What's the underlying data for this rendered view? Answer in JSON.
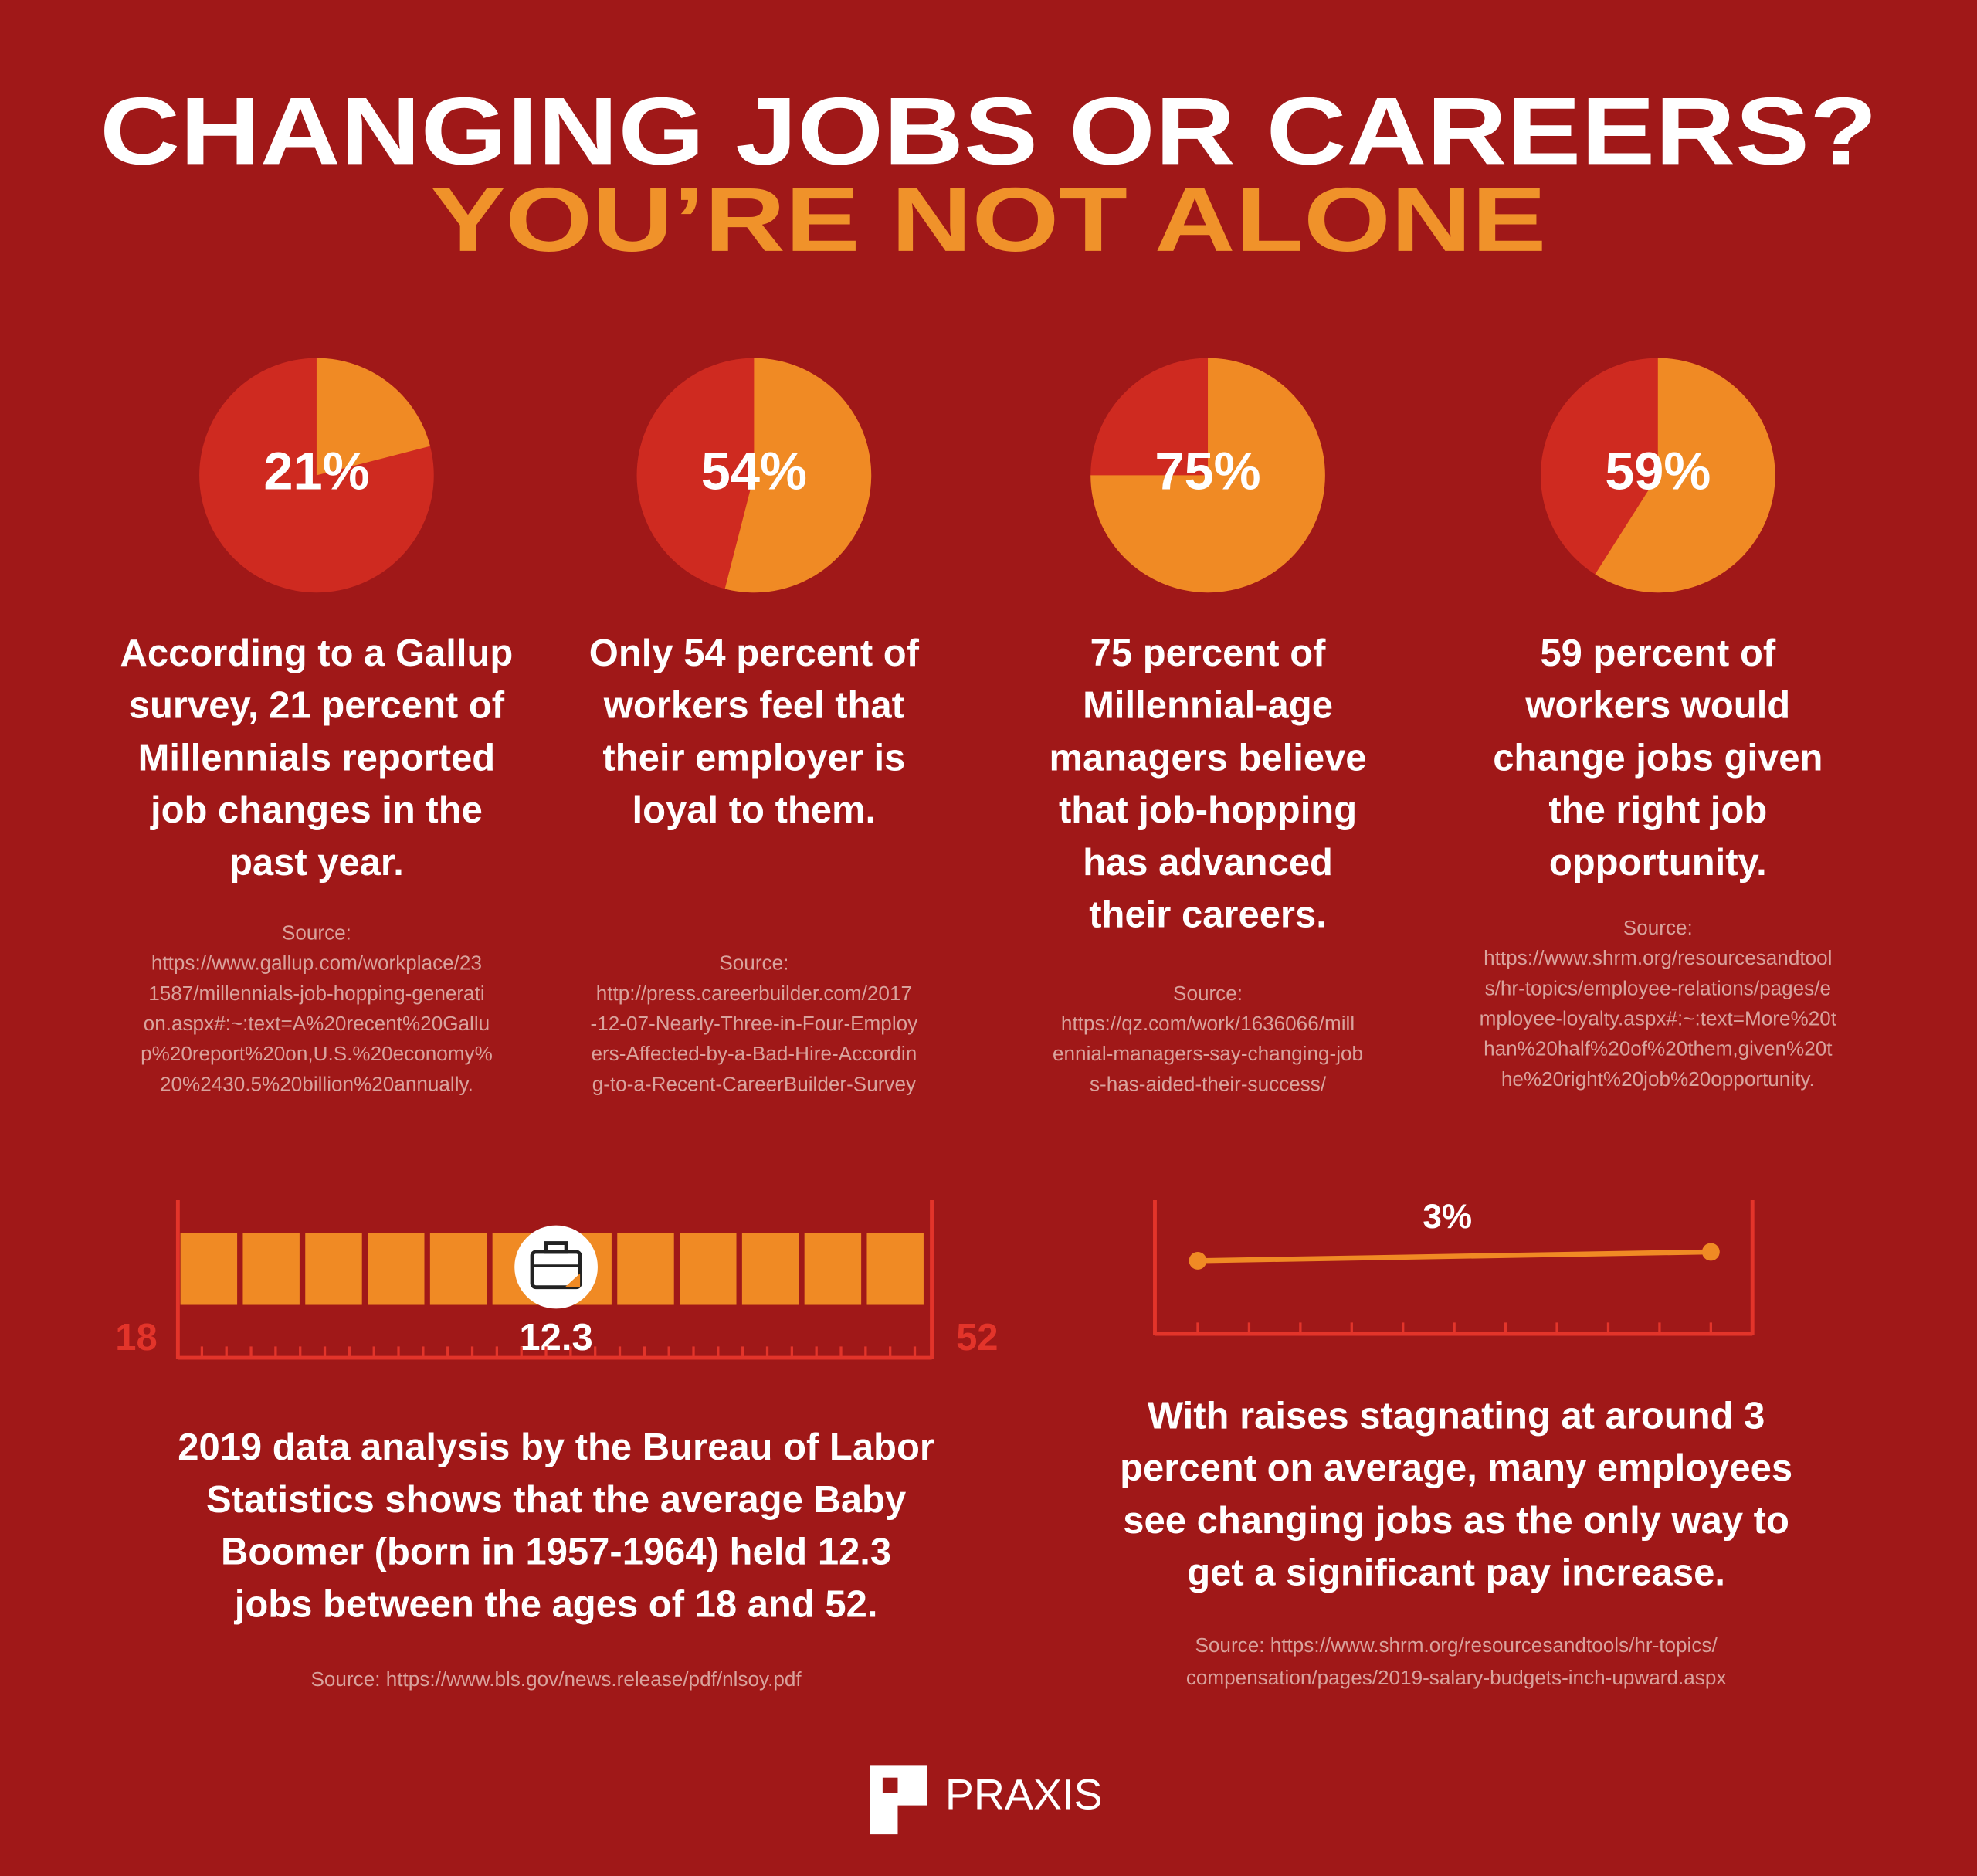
{
  "title": "CHANGING JOBS OR CAREERS?",
  "subtitle": "YOU’RE NOT ALONE",
  "stats": [
    {
      "value": 21,
      "label": "21%",
      "text": [
        "According to a Gallup",
        "survey, 21 percent of",
        "Millennials reported",
        "job changes in the",
        "past year."
      ],
      "source": [
        "Source:",
        "https://www.gallup.com/workplace/23",
        "1587/millennials-job-hopping-generati",
        "on.aspx#:~:text=A%20recent%20Gallu",
        "p%20report%20on,U.S.%20economy%",
        "20%2430.5%20billion%20annually."
      ]
    },
    {
      "value": 54,
      "label": "54%",
      "text": [
        "Only 54 percent of",
        "workers feel that",
        "their employer is",
        "loyal to them."
      ],
      "source": [
        "Source:",
        "http://press.careerbuilder.com/2017",
        "-12-07-Nearly-Three-in-Four-Employ",
        "ers-Affected-by-a-Bad-Hire-Accordin",
        "g-to-a-Recent-CareerBuilder-Survey"
      ]
    },
    {
      "value": 75,
      "label": "75%",
      "text": [
        "75 percent of",
        "Millennial-age",
        "managers believe",
        "that job-hopping",
        "has advanced",
        "their careers."
      ],
      "source": [
        "Source:",
        "https://qz.com/work/1636066/mill",
        "ennial-managers-say-changing-job",
        "s-has-aided-their-success/"
      ]
    },
    {
      "value": 59,
      "label": "59%",
      "text": [
        "59 percent of",
        "workers would",
        "change jobs given",
        "the right job",
        "opportunity."
      ],
      "source": [
        "Source:",
        "https://www.shrm.org/resourcesandtool",
        "s/hr-topics/employee-relations/pages/e",
        "mployee-loyalty.aspx#:~:text=More%20t",
        "han%20half%20of%20them,given%20t",
        "he%20right%20job%20opportunity."
      ]
    }
  ],
  "jobs": {
    "start": "18",
    "end": "52",
    "value": "12.3",
    "text": [
      "2019 data analysis by the Bureau of Labor",
      "Statistics shows that the average Baby",
      "Boomer (born in 1957-1964) held 12.3",
      "jobs between the ages of 18 and 52."
    ],
    "source": [
      "Source: https://www.bls.gov/news.release/pdf/nlsoy.pdf"
    ]
  },
  "raise": {
    "label": "3%",
    "text": [
      "With raises stagnating at around 3",
      "percent on average, many employees",
      "see changing jobs as the only way to",
      "get a significant pay increase."
    ],
    "source": [
      "Source: https://www.shrm.org/resourcesandtools/hr-topics/",
      "compensation/pages/2019-salary-budgets-inch-upward.aspx"
    ]
  },
  "brand": "PRAXIS"
}
